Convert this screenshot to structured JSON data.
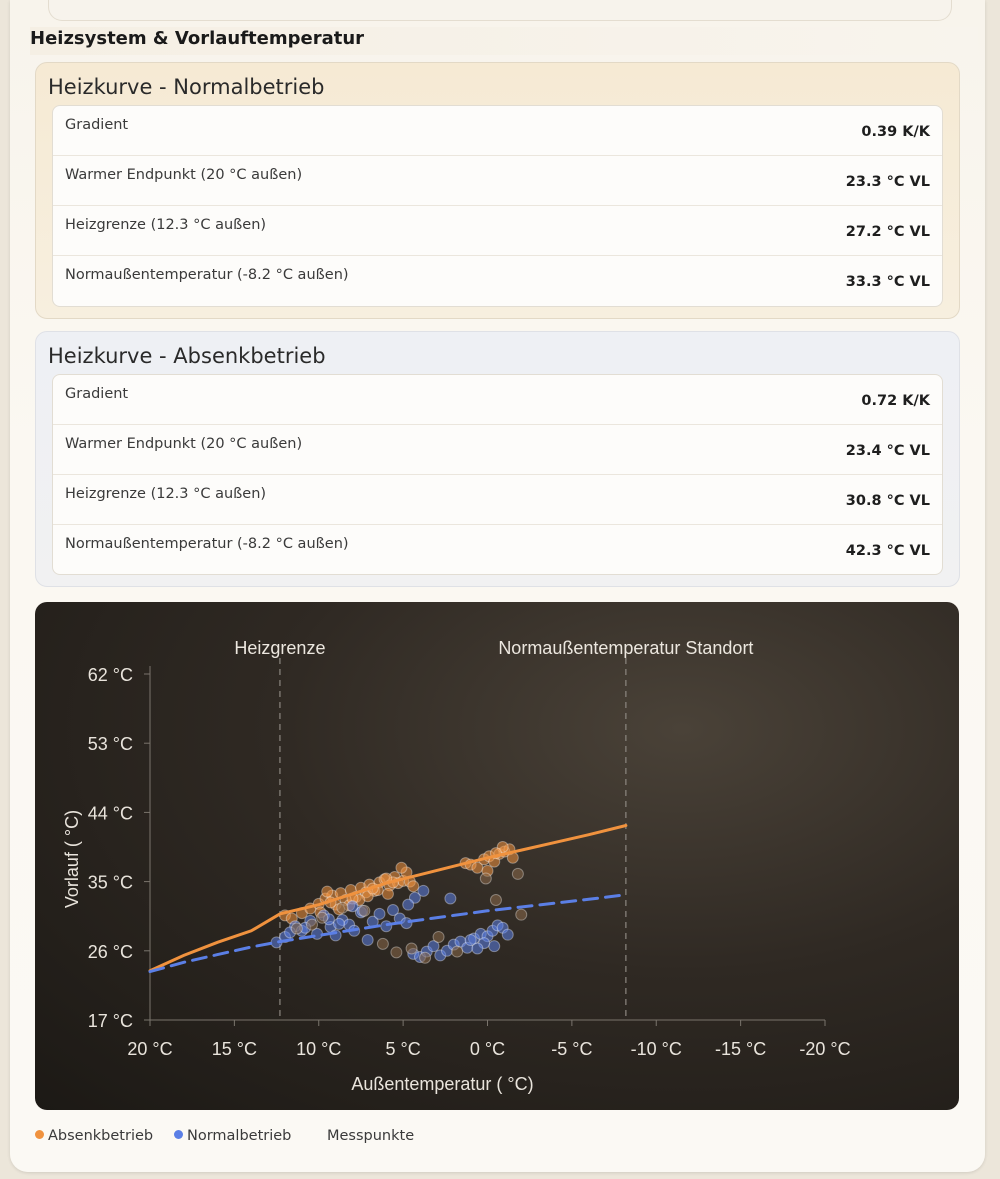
{
  "section": {
    "title": "Heizsystem & Vorlauftemperatur"
  },
  "normal": {
    "title": "Heizkurve - Normalbetrieb",
    "rows": [
      {
        "label": "Gradient",
        "value": "0.39 K/K"
      },
      {
        "label": "Warmer Endpunkt (20 °C außen)",
        "value": "23.3 °C VL"
      },
      {
        "label": "Heizgrenze (12.3 °C außen)",
        "value": "27.2 °C VL"
      },
      {
        "label": "Normaußentemperatur (-8.2 °C außen)",
        "value": "33.3 °C VL"
      }
    ]
  },
  "absenk": {
    "title": "Heizkurve - Absenkbetrieb",
    "rows": [
      {
        "label": "Gradient",
        "value": "0.72 K/K"
      },
      {
        "label": "Warmer Endpunkt (20 °C außen)",
        "value": "23.4 °C VL"
      },
      {
        "label": "Heizgrenze (12.3 °C außen)",
        "value": "30.8 °C VL"
      },
      {
        "label": "Normaußentemperatur (-8.2 °C außen)",
        "value": "42.3 °C VL"
      }
    ]
  },
  "legend": {
    "absenk": "Absenkbetrieb",
    "normal": "Normalbetrieb",
    "mess": "Messpunkte"
  },
  "chart_data": {
    "type": "scatter",
    "xlabel": "Außentemperatur ( °C)",
    "ylabel": "Vorlauf ( °C)",
    "xlim": [
      20,
      -20
    ],
    "ylim": [
      17,
      62
    ],
    "x_reversed": true,
    "x_ticks": [
      20,
      15,
      10,
      5,
      0,
      -5,
      -10,
      -15,
      -20
    ],
    "x_tick_labels": [
      "20 °C",
      "15 °C",
      "10 °C",
      "5 °C",
      "0 °C",
      "-5 °C",
      "-10 °C",
      "-15 °C",
      "-20 °C"
    ],
    "y_ticks": [
      17,
      26,
      35,
      44,
      53,
      62
    ],
    "y_tick_labels": [
      "17 °C",
      "26 °C",
      "35 °C",
      "44 °C",
      "53 °C",
      "62 °C"
    ],
    "grid": false,
    "annotations": [
      {
        "label": "Heizgrenze",
        "x": 12.3
      },
      {
        "label": "Normaußentemperatur Standort",
        "x": -8.2
      }
    ],
    "colors": {
      "absenk": "#f0923e",
      "normal": "#5b7fe6",
      "mess_brown": "#8a6a4a"
    },
    "curves": [
      {
        "name": "Absenkbetrieb",
        "style": "solid",
        "x": [
          20,
          18,
          16,
          14,
          12.3,
          10,
          8,
          6,
          4,
          2,
          0,
          -2,
          -4,
          -6,
          -8.2
        ],
        "y": [
          23.4,
          25.4,
          27.1,
          28.6,
          30.8,
          32.0,
          33.4,
          34.8,
          35.9,
          37.0,
          38.1,
          39.1,
          40.1,
          41.1,
          42.3
        ]
      },
      {
        "name": "Normalbetrieb",
        "style": "dashed",
        "x": [
          20,
          18,
          16,
          14,
          12.3,
          10,
          8,
          6,
          4,
          2,
          0,
          -2,
          -4,
          -6,
          -8.2
        ],
        "y": [
          23.3,
          24.5,
          25.5,
          26.5,
          27.2,
          28.0,
          28.7,
          29.4,
          30.0,
          30.6,
          31.2,
          31.7,
          32.2,
          32.7,
          33.3
        ]
      }
    ],
    "series": [
      {
        "name": "Absenkbetrieb",
        "x": [
          12.0,
          11.6,
          11.0,
          10.5,
          10.0,
          9.6,
          9.2,
          9.0,
          8.7,
          8.4,
          8.1,
          7.8,
          7.5,
          7.2,
          7.0,
          6.7,
          6.4,
          6.1,
          5.8,
          5.5,
          5.3,
          5.0,
          4.8,
          4.6,
          4.4,
          5.1,
          5.6,
          6.0,
          6.5,
          7.1,
          7.6,
          8.2,
          8.8,
          9.3,
          9.9,
          1.3,
          1.0,
          0.6,
          0.2,
          -0.1,
          -0.4,
          -0.7,
          -1.0,
          -1.3,
          -1.5,
          -0.9,
          -0.5,
          0.0,
          9.5,
          8.0,
          6.8,
          5.9
        ],
        "y": [
          30.6,
          30.2,
          30.9,
          31.5,
          32.1,
          32.8,
          33.2,
          32.0,
          33.5,
          32.6,
          33.9,
          33.0,
          34.2,
          33.6,
          34.6,
          33.8,
          34.9,
          35.3,
          34.5,
          35.6,
          34.8,
          35.1,
          36.2,
          35.0,
          34.4,
          36.8,
          34.9,
          35.4,
          33.9,
          33.1,
          32.6,
          31.9,
          31.4,
          32.3,
          31.0,
          37.4,
          37.2,
          36.8,
          37.9,
          38.3,
          37.6,
          38.6,
          38.9,
          39.2,
          38.1,
          39.5,
          38.7,
          36.4,
          33.7,
          32.8,
          34.1,
          33.4
        ]
      },
      {
        "name": "Normalbetrieb",
        "x": [
          12.5,
          12.0,
          11.4,
          11.0,
          10.5,
          10.1,
          9.7,
          9.3,
          9.0,
          8.6,
          8.2,
          7.9,
          7.5,
          7.1,
          6.8,
          6.4,
          6.0,
          5.6,
          5.2,
          4.8,
          4.4,
          4.0,
          3.6,
          3.2,
          2.8,
          2.4,
          2.0,
          1.6,
          1.2,
          0.8,
          0.4,
          0.0,
          -0.3,
          -0.6,
          -0.9,
          -1.2,
          -0.4,
          0.2,
          0.6,
          1.0,
          3.8,
          4.3,
          4.7,
          2.2,
          9.4,
          8.8,
          8.0,
          7.4,
          10.8,
          11.7
        ],
        "y": [
          27.1,
          27.8,
          29.2,
          28.6,
          29.9,
          28.2,
          30.6,
          29.1,
          28.0,
          30.0,
          29.4,
          28.6,
          31.0,
          27.4,
          29.8,
          30.8,
          29.2,
          31.3,
          30.2,
          29.6,
          25.6,
          25.2,
          25.9,
          26.6,
          25.4,
          26.0,
          26.8,
          27.2,
          26.4,
          27.6,
          28.2,
          27.9,
          28.6,
          29.3,
          29.0,
          28.1,
          26.6,
          27.0,
          26.3,
          27.4,
          33.8,
          32.9,
          32.0,
          32.8,
          30.1,
          29.5,
          31.8,
          31.2,
          29.0,
          28.4
        ]
      },
      {
        "name": "Messpunkte",
        "x": [
          6.2,
          5.4,
          3.7,
          4.5,
          2.9,
          8.6,
          9.8,
          1.8,
          -1.8,
          -2.0,
          0.1,
          -0.5,
          7.3,
          10.4,
          11.3
        ],
        "y": [
          26.9,
          25.8,
          25.1,
          26.3,
          27.8,
          31.6,
          30.3,
          25.9,
          36.0,
          30.7,
          35.4,
          32.6,
          31.2,
          29.4,
          28.9
        ]
      }
    ]
  }
}
